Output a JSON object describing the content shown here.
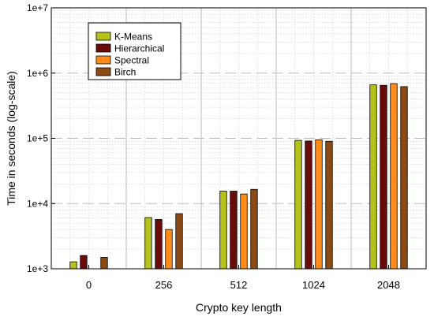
{
  "chart_data": {
    "type": "bar",
    "title": "",
    "xlabel": "Crypto key length",
    "ylabel": "Time in seconds (log-scale)",
    "yscale": "log",
    "ylim": [
      1000,
      10000000
    ],
    "y_tick_labels": [
      "1e+3",
      "1e+4",
      "1e+5",
      "1e+6",
      "1e+7"
    ],
    "categories": [
      "0",
      "256",
      "512",
      "1024",
      "2048"
    ],
    "grid": true,
    "legend_position": "top-left",
    "series": [
      {
        "name": "K-Means",
        "color": "#b5c21b",
        "values": [
          1280,
          6100,
          15500,
          93000,
          660000
        ]
      },
      {
        "name": "Hierarchical",
        "color": "#6b0a0a",
        "values": [
          1600,
          5700,
          15500,
          91000,
          650000
        ]
      },
      {
        "name": "Spectral",
        "color": "#ff8c1a",
        "values": [
          null,
          4000,
          14000,
          95000,
          690000
        ]
      },
      {
        "name": "Birch",
        "color": "#8b4a14",
        "values": [
          1500,
          7000,
          16500,
          90000,
          620000
        ]
      }
    ]
  }
}
